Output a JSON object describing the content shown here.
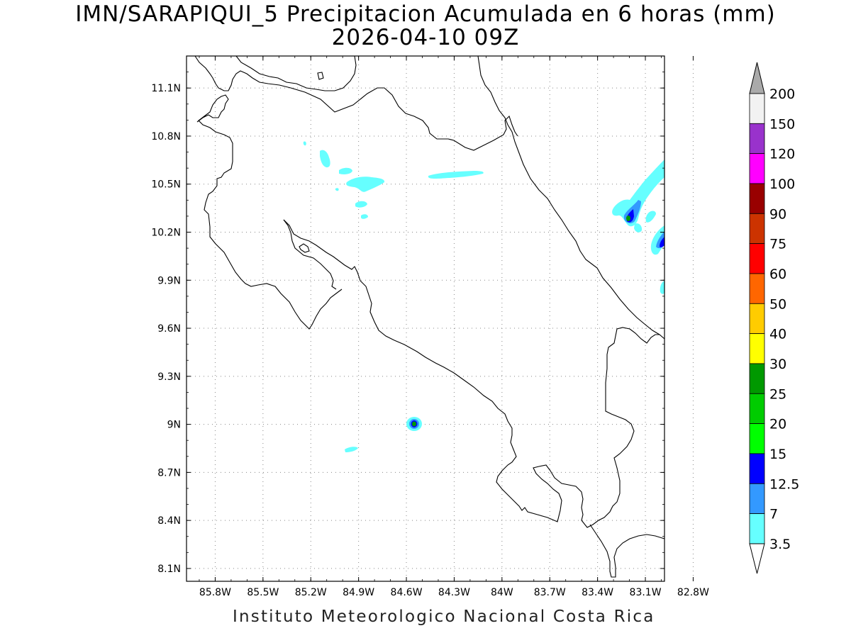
{
  "title": {
    "line1": "IMN/SARAPIQUI_5 Precipitacion Acumulada en 6 horas (mm)",
    "line2": "2026-04-10 09Z"
  },
  "footer": "Instituto Meteorologico Nacional Costa Rica",
  "map": {
    "lon_range": [
      -85.98,
      -82.98
    ],
    "lat_range": [
      8.02,
      11.3
    ],
    "lon_ticks": [
      {
        "value": -85.8,
        "label": "85.8W"
      },
      {
        "value": -85.5,
        "label": "85.5W"
      },
      {
        "value": -85.2,
        "label": "85.2W"
      },
      {
        "value": -84.9,
        "label": "84.9W"
      },
      {
        "value": -84.6,
        "label": "84.6W"
      },
      {
        "value": -84.3,
        "label": "84.3W"
      },
      {
        "value": -84.0,
        "label": "84W"
      },
      {
        "value": -83.7,
        "label": "83.7W"
      },
      {
        "value": -83.4,
        "label": "83.4W"
      },
      {
        "value": -83.1,
        "label": "83.1W"
      },
      {
        "value": -82.8,
        "label": "82.8W"
      }
    ],
    "lat_ticks": [
      {
        "value": 11.1,
        "label": "11.1N"
      },
      {
        "value": 10.8,
        "label": "10.8N"
      },
      {
        "value": 10.5,
        "label": "10.5N"
      },
      {
        "value": 10.2,
        "label": "10.2N"
      },
      {
        "value": 9.9,
        "label": "9.9N"
      },
      {
        "value": 9.6,
        "label": "9.6N"
      },
      {
        "value": 9.3,
        "label": "9.3N"
      },
      {
        "value": 9.0,
        "label": "9N"
      },
      {
        "value": 8.7,
        "label": "8.7N"
      },
      {
        "value": 8.4,
        "label": "8.4N"
      },
      {
        "value": 8.1,
        "label": "8.1N"
      }
    ],
    "grid": true
  },
  "colorbar": {
    "levels": [
      "200",
      "150",
      "120",
      "100",
      "90",
      "75",
      "60",
      "50",
      "40",
      "30",
      "25",
      "20",
      "15",
      "12.5",
      "7",
      "3.5"
    ],
    "colors": [
      "#f2f2f2",
      "#9932cc",
      "#ff00ff",
      "#990000",
      "#cc3300",
      "#ff0000",
      "#ff6600",
      "#ffcc00",
      "#ffff00",
      "#009900",
      "#00cc00",
      "#00ff00",
      "#0000ff",
      "#3399ff",
      "#66ffff"
    ],
    "top_arrow_color": "#aaaaaa",
    "bottom_arrow_color": "#ffffff"
  },
  "precip_colors": {
    "light": "#66ffff",
    "moderate": "#3399ff",
    "heavy": "#0000ff",
    "green": "#009900"
  }
}
